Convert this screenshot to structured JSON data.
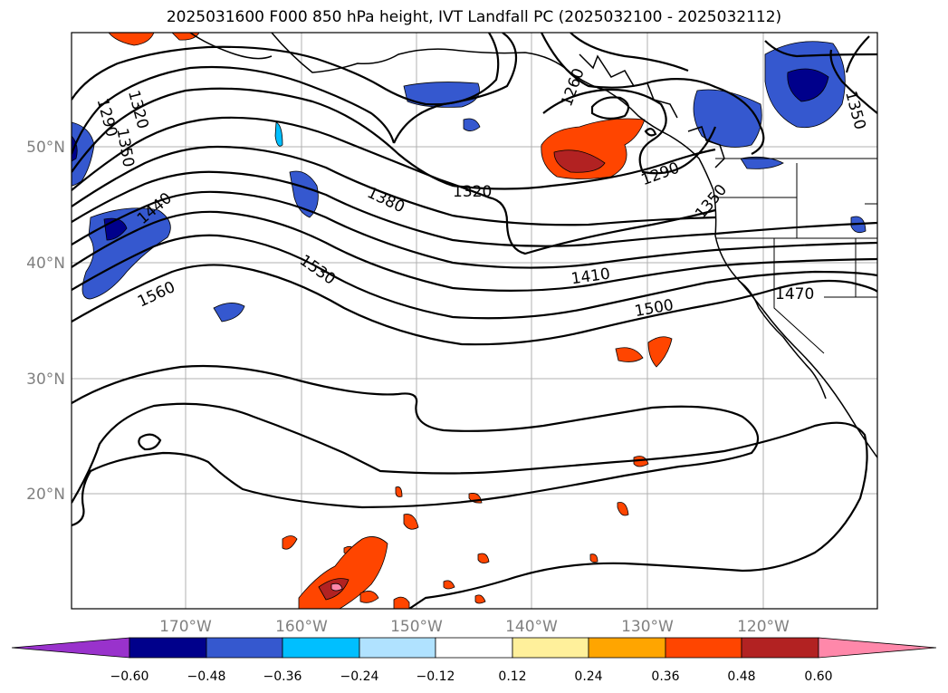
{
  "title": "2025031600 F000 850 hPa height, IVT Landfall PC (2025032100 - 2025032112)",
  "map": {
    "lon_ticks": [
      "170°W",
      "160°W",
      "150°W",
      "140°W",
      "130°W",
      "120°W"
    ],
    "lat_ticks": [
      "50°N",
      "40°N",
      "30°N",
      "20°N"
    ],
    "contour_labels": [
      "1260",
      "1290",
      "1290",
      "1320",
      "1320",
      "1350",
      "1350",
      "1350",
      "1380",
      "1410",
      "1440",
      "1470",
      "1500",
      "1530",
      "1560"
    ],
    "colors": {
      "negative": [
        "#9932cc",
        "#00008b",
        "#3558cf",
        "#00bfff",
        "#b0e2ff"
      ],
      "positive": [
        "#fff09b",
        "#ffa500",
        "#ff4500",
        "#b22222",
        "#ff88aa"
      ]
    }
  },
  "colorbar": {
    "ticks": [
      "−0.60",
      "−0.48",
      "−0.36",
      "−0.24",
      "−0.12",
      "0.12",
      "0.24",
      "0.36",
      "0.48",
      "0.60"
    ]
  }
}
